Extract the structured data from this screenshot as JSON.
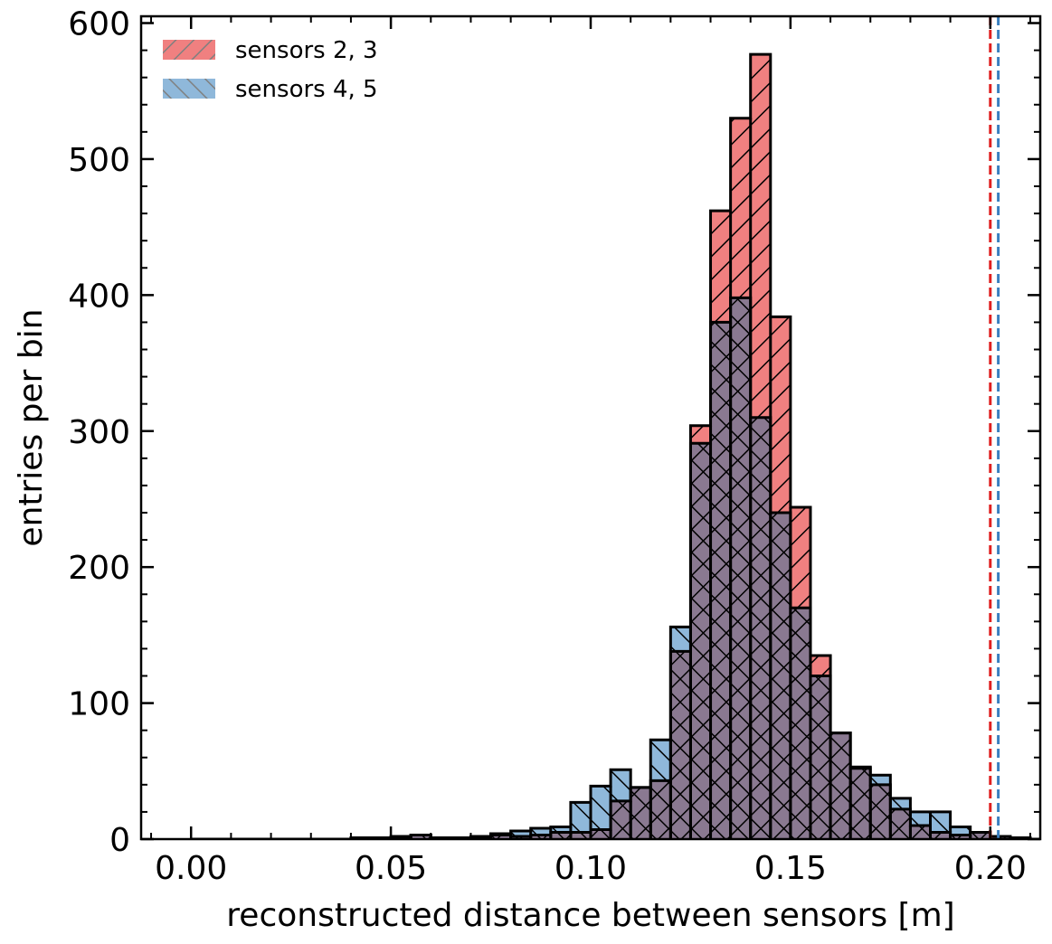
{
  "chart_data": {
    "type": "bar",
    "title": "",
    "xlabel": "reconstructed distance between sensors [m]",
    "ylabel": "entries per bin",
    "xlim": [
      -0.0125,
      0.2125
    ],
    "ylim": [
      0,
      605
    ],
    "xticks": [
      "0.00",
      "0.05",
      "0.10",
      "0.15",
      "0.20"
    ],
    "yticks": [
      "0",
      "100",
      "200",
      "300",
      "400",
      "500",
      "600"
    ],
    "bin_width": 0.005,
    "bin_edges_start": 0.0,
    "grid": false,
    "legend_position": "top-left",
    "series": [
      {
        "name": "sensors 2, 3",
        "color": "#f08080",
        "hatch": "forward-diagonal",
        "values": [
          0,
          0,
          0,
          0,
          0,
          0,
          0,
          0,
          1,
          1,
          1,
          3,
          1,
          0,
          1,
          3,
          2,
          3,
          5,
          5,
          7,
          28,
          38,
          43,
          138,
          304,
          462,
          530,
          577,
          384,
          244,
          135,
          78,
          53,
          40,
          22,
          10,
          5,
          3,
          5,
          2,
          1,
          0,
          0,
          0
        ]
      },
      {
        "name": "sensors 4, 5",
        "color": "#8fb8da",
        "hatch": "backward-diagonal",
        "values": [
          0,
          0,
          0,
          0,
          0,
          0,
          0,
          0,
          0,
          1,
          2,
          3,
          0,
          1,
          2,
          4,
          6,
          8,
          9,
          27,
          39,
          51,
          38,
          73,
          156,
          291,
          380,
          398,
          310,
          240,
          170,
          120,
          78,
          52,
          47,
          30,
          20,
          20,
          9,
          5,
          2,
          1,
          0,
          0,
          0
        ]
      }
    ],
    "overlap_color": "#8a7991",
    "reference_lines": [
      {
        "x": 0.2,
        "color": "#e02020",
        "style": "dashed"
      },
      {
        "x": 0.202,
        "color": "#3a7fc0",
        "style": "dashed"
      }
    ]
  }
}
